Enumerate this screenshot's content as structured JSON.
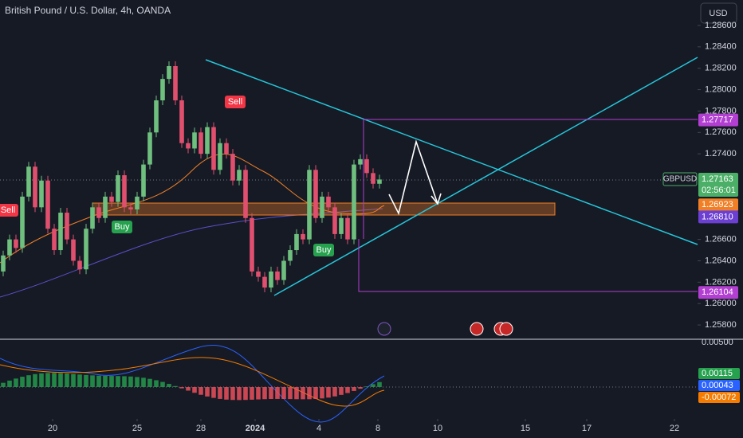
{
  "chart_data": {
    "type": "candlestick",
    "title": "British Pound / U.S. Dollar, 4h, OANDA",
    "currency_button": "USD",
    "open": [
      1.263,
      1.2645,
      1.266,
      1.2652,
      1.27,
      1.2728,
      1.269,
      1.2715,
      1.267,
      1.265,
      1.2685,
      1.266,
      1.264,
      1.2632,
      1.267,
      1.269,
      1.268,
      1.27,
      1.2695,
      1.272,
      1.269,
      1.2688,
      1.27,
      1.273,
      1.276,
      1.279,
      1.281,
      1.2822,
      1.279,
      1.275,
      1.2745,
      1.276,
      1.274,
      1.2765,
      1.2725,
      1.275,
      1.274,
      1.2715,
      1.2725,
      1.268,
      1.263,
      1.2625,
      1.2615,
      1.263,
      1.2622,
      1.264,
      1.265,
      1.2665,
      1.266,
      1.2725,
      1.268,
      1.27,
      1.269,
      1.2665,
      1.268,
      1.266,
      1.273,
      1.2735,
      1.2722,
      1.2712
    ],
    "close": [
      1.2645,
      1.266,
      1.2652,
      1.27,
      1.2728,
      1.269,
      1.2715,
      1.267,
      1.265,
      1.2685,
      1.266,
      1.264,
      1.2632,
      1.267,
      1.269,
      1.268,
      1.27,
      1.2695,
      1.272,
      1.269,
      1.2688,
      1.27,
      1.273,
      1.276,
      1.279,
      1.281,
      1.2822,
      1.279,
      1.275,
      1.2745,
      1.276,
      1.274,
      1.2765,
      1.2725,
      1.275,
      1.274,
      1.2715,
      1.2725,
      1.268,
      1.263,
      1.2625,
      1.2615,
      1.263,
      1.2622,
      1.264,
      1.265,
      1.2665,
      1.266,
      1.2725,
      1.268,
      1.27,
      1.269,
      1.2665,
      1.268,
      1.266,
      1.273,
      1.2735,
      1.2722,
      1.2712,
      1.2716
    ],
    "up_color": "#6fbf7f",
    "down_color": "#e0506e",
    "xlim": [
      -0.5,
      108.5
    ],
    "xticks": [
      {
        "value": 7.75,
        "label": "20"
      },
      {
        "value": 21,
        "label": "25"
      },
      {
        "value": 31,
        "label": "28"
      },
      {
        "value": 39.5,
        "label": "2024"
      },
      {
        "value": 49.5,
        "label": "4"
      },
      {
        "value": 58.75,
        "label": "8"
      },
      {
        "value": 68.125,
        "label": "10"
      },
      {
        "value": 81.875,
        "label": "15"
      },
      {
        "value": 91.5,
        "label": "17"
      },
      {
        "value": 105.25,
        "label": "22"
      }
    ],
    "ylim": [
      1.25674,
      1.28838
    ],
    "yticks": [
      {
        "value": 1.286,
        "label": "1.28600"
      },
      {
        "value": 1.284,
        "label": "1.28400"
      },
      {
        "value": 1.282,
        "label": "1.28200"
      },
      {
        "value": 1.28,
        "label": "1.28000"
      },
      {
        "value": 1.278,
        "label": "1.27800"
      },
      {
        "value": 1.276,
        "label": "1.27600"
      },
      {
        "value": 1.274,
        "label": "1.27400"
      },
      {
        "value": 1.266,
        "label": "1.26600"
      },
      {
        "value": 1.264,
        "label": "1.26400"
      },
      {
        "value": 1.262,
        "label": "1.26200"
      },
      {
        "value": 1.26,
        "label": "1.26000"
      },
      {
        "value": 1.258,
        "label": "1.25800"
      }
    ],
    "price_badges": [
      {
        "value": 1.27717,
        "label": "1.27717",
        "color": "#b23fd1"
      },
      {
        "value": 1.26923,
        "label": "1.26923",
        "color": "#f07f26"
      },
      {
        "value": 1.2681,
        "label": "1.26810",
        "color": "#6b3fd1"
      },
      {
        "value": 1.26104,
        "label": "1.26104",
        "color": "#b23fd1"
      }
    ],
    "last_price": {
      "symbol": "GBPUSD",
      "value": 1.27163,
      "label": "1.27163",
      "countdown": "02:56:01",
      "color": "#4caf67"
    },
    "signals": [
      {
        "text": "Sell",
        "color": "#f23645",
        "x": 295,
        "y": 128
      },
      {
        "text": "Sell",
        "color": "#f23645",
        "x": 10,
        "y": 264
      },
      {
        "text": "Buy",
        "color": "#26a24f",
        "x": 153,
        "y": 285
      },
      {
        "text": "Buy",
        "color": "#26a24f",
        "x": 406,
        "y": 314
      }
    ],
    "macd_labels": [
      {
        "label": "0.00500",
        "color": "none"
      },
      {
        "label": "0.00115",
        "color": "#26a24f"
      },
      {
        "label": "0.00043",
        "color": "#2962ff"
      },
      {
        "label": "-0.00072",
        "color": "#f57c00"
      }
    ]
  }
}
